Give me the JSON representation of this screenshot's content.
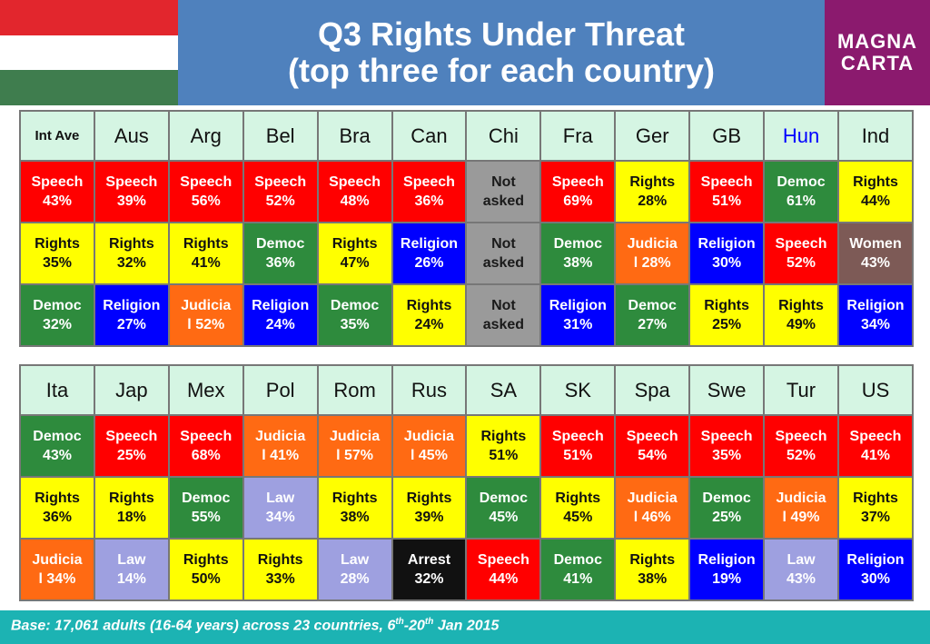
{
  "header": {
    "title_line1": "Q3 Rights Under Threat",
    "title_line2": "(top three for each country)",
    "logo_line1": "MAGNA",
    "logo_line2": "CARTA"
  },
  "colors": {
    "Speech": "#ff0000",
    "Rights": "#ffff00",
    "Democ": "#2e8b3d",
    "Religion": "#0000ff",
    "Judicial": "#ff6a13",
    "Women": "#7d5a56",
    "Law": "#9ea0e0",
    "Arrest": "#111111",
    "NotAsked": "#9a9a9a",
    "header_bg": "#d5f5e3",
    "highlight": "#0000ff",
    "title_band": "#4f81bd",
    "logo_bg": "#8b1a6e",
    "footer_bg": "#1cb3b3"
  },
  "chart_data": {
    "type": "table",
    "title": "Q3 Rights Under Threat (top three for each country)",
    "highlight_country": "Hun",
    "tables": [
      {
        "countries": [
          "Int Ave",
          "Aus",
          "Arg",
          "Bel",
          "Bra",
          "Can",
          "Chi",
          "Fra",
          "Ger",
          "GB",
          "Hun",
          "Ind"
        ],
        "rows": [
          [
            {
              "cat": "Speech",
              "label": "Speech\n43%",
              "value": 43
            },
            {
              "cat": "Speech",
              "label": "Speech\n39%",
              "value": 39
            },
            {
              "cat": "Speech",
              "label": "Speech\n56%",
              "value": 56
            },
            {
              "cat": "Speech",
              "label": "Speech\n52%",
              "value": 52
            },
            {
              "cat": "Speech",
              "label": "Speech\n48%",
              "value": 48
            },
            {
              "cat": "Speech",
              "label": "Speech\n36%",
              "value": 36
            },
            {
              "cat": "NotAsked",
              "label": "Not\nasked",
              "value": null
            },
            {
              "cat": "Speech",
              "label": "Speech\n69%",
              "value": 69
            },
            {
              "cat": "Rights",
              "label": "Rights\n28%",
              "value": 28
            },
            {
              "cat": "Speech",
              "label": "Speech\n51%",
              "value": 51
            },
            {
              "cat": "Democ",
              "label": "Democ\n61%",
              "value": 61
            },
            {
              "cat": "Rights",
              "label": "Rights\n44%",
              "value": 44
            }
          ],
          [
            {
              "cat": "Rights",
              "label": "Rights\n35%",
              "value": 35
            },
            {
              "cat": "Rights",
              "label": "Rights\n32%",
              "value": 32
            },
            {
              "cat": "Rights",
              "label": "Rights\n41%",
              "value": 41
            },
            {
              "cat": "Democ",
              "label": "Democ\n36%",
              "value": 36
            },
            {
              "cat": "Rights",
              "label": "Rights\n47%",
              "value": 47
            },
            {
              "cat": "Religion",
              "label": "Religion\n26%",
              "value": 26
            },
            {
              "cat": "NotAsked",
              "label": "Not\nasked",
              "value": null
            },
            {
              "cat": "Democ",
              "label": "Democ\n38%",
              "value": 38
            },
            {
              "cat": "Judicial",
              "label": "Judicia\nl 28%",
              "value": 28
            },
            {
              "cat": "Religion",
              "label": "Religion\n30%",
              "value": 30
            },
            {
              "cat": "Speech",
              "label": "Speech\n52%",
              "value": 52
            },
            {
              "cat": "Women",
              "label": "Women\n43%",
              "value": 43
            }
          ],
          [
            {
              "cat": "Democ",
              "label": "Democ\n32%",
              "value": 32
            },
            {
              "cat": "Religion",
              "label": "Religion\n27%",
              "value": 27
            },
            {
              "cat": "Judicial",
              "label": "Judicia\nl 52%",
              "value": 52
            },
            {
              "cat": "Religion",
              "label": "Religion\n24%",
              "value": 24
            },
            {
              "cat": "Democ",
              "label": "Democ\n35%",
              "value": 35
            },
            {
              "cat": "Rights",
              "label": "Rights\n24%",
              "value": 24
            },
            {
              "cat": "NotAsked",
              "label": "Not\nasked",
              "value": null
            },
            {
              "cat": "Religion",
              "label": "Religion\n31%",
              "value": 31
            },
            {
              "cat": "Democ",
              "label": "Democ\n27%",
              "value": 27
            },
            {
              "cat": "Rights",
              "label": "Rights\n25%",
              "value": 25
            },
            {
              "cat": "Rights",
              "label": "Rights\n49%",
              "value": 49
            },
            {
              "cat": "Religion",
              "label": "Religion\n34%",
              "value": 34
            }
          ]
        ]
      },
      {
        "countries": [
          "Ita",
          "Jap",
          "Mex",
          "Pol",
          "Rom",
          "Rus",
          "SA",
          "SK",
          "Spa",
          "Swe",
          "Tur",
          "US"
        ],
        "rows": [
          [
            {
              "cat": "Democ",
              "label": "Democ\n43%",
              "value": 43
            },
            {
              "cat": "Speech",
              "label": "Speech\n25%",
              "value": 25
            },
            {
              "cat": "Speech",
              "label": "Speech\n68%",
              "value": 68
            },
            {
              "cat": "Judicial",
              "label": "Judicia\nl 41%",
              "value": 41
            },
            {
              "cat": "Judicial",
              "label": "Judicia\nl 57%",
              "value": 57
            },
            {
              "cat": "Judicial",
              "label": "Judicia\nl 45%",
              "value": 45
            },
            {
              "cat": "Rights",
              "label": "Rights\n51%",
              "value": 51
            },
            {
              "cat": "Speech",
              "label": "Speech\n51%",
              "value": 51
            },
            {
              "cat": "Speech",
              "label": "Speech\n54%",
              "value": 54
            },
            {
              "cat": "Speech",
              "label": "Speech\n35%",
              "value": 35
            },
            {
              "cat": "Speech",
              "label": "Speech\n52%",
              "value": 52
            },
            {
              "cat": "Speech",
              "label": "Speech\n41%",
              "value": 41
            }
          ],
          [
            {
              "cat": "Rights",
              "label": "Rights\n36%",
              "value": 36
            },
            {
              "cat": "Rights",
              "label": "Rights\n18%",
              "value": 18
            },
            {
              "cat": "Democ",
              "label": "Democ\n55%",
              "value": 55
            },
            {
              "cat": "Law",
              "label": "Law\n34%",
              "value": 34
            },
            {
              "cat": "Rights",
              "label": "Rights\n38%",
              "value": 38
            },
            {
              "cat": "Rights",
              "label": "Rights\n39%",
              "value": 39
            },
            {
              "cat": "Democ",
              "label": "Democ\n45%",
              "value": 45
            },
            {
              "cat": "Rights",
              "label": "Rights\n45%",
              "value": 45
            },
            {
              "cat": "Judicial",
              "label": "Judicia\nl 46%",
              "value": 46
            },
            {
              "cat": "Democ",
              "label": "Democ\n25%",
              "value": 25
            },
            {
              "cat": "Judicial",
              "label": "Judicia\nl 49%",
              "value": 49
            },
            {
              "cat": "Rights",
              "label": "Rights\n37%",
              "value": 37
            }
          ],
          [
            {
              "cat": "Judicial",
              "label": "Judicia\nl 34%",
              "value": 34
            },
            {
              "cat": "Law",
              "label": "Law\n14%",
              "value": 14
            },
            {
              "cat": "Rights",
              "label": "Rights\n50%",
              "value": 50
            },
            {
              "cat": "Rights",
              "label": "Rights\n33%",
              "value": 33
            },
            {
              "cat": "Law",
              "label": "Law\n28%",
              "value": 28
            },
            {
              "cat": "Arrest",
              "label": "Arrest\n32%",
              "value": 32
            },
            {
              "cat": "Speech",
              "label": "Speech\n44%",
              "value": 44
            },
            {
              "cat": "Democ",
              "label": "Democ\n41%",
              "value": 41
            },
            {
              "cat": "Rights",
              "label": "Rights\n38%",
              "value": 38
            },
            {
              "cat": "Religion",
              "label": "Religion\n19%",
              "value": 19
            },
            {
              "cat": "Law",
              "label": "Law\n43%",
              "value": 43
            },
            {
              "cat": "Religion",
              "label": "Religion\n30%",
              "value": 30
            }
          ]
        ]
      }
    ]
  },
  "footer": {
    "text_part1": "Base: 17,061 adults (16-64 years) across 23 countries, 6",
    "sup1": "th",
    "text_part2": "-20",
    "sup2": "th",
    "text_part3": " Jan 2015"
  }
}
